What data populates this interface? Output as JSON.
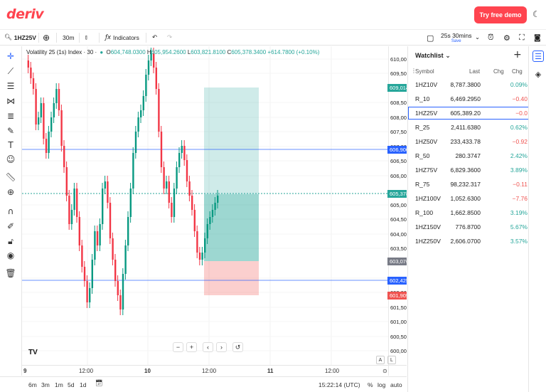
{
  "brand": {
    "logo": "deriv",
    "accent": "#ff444f"
  },
  "topbar": {
    "demo_label": "Try free demo",
    "theme_icon": "moon-icon"
  },
  "toolbar": {
    "symbol": "1HZ25V",
    "interval": "30m",
    "indicators_label": "Indicators",
    "range_label": "25s 30mins",
    "range_sub": "Save"
  },
  "legend": {
    "title": "Volatility 25 (1s) Index · 30 ·",
    "o_label": "O",
    "o": "604,748.0300",
    "h_label": "H",
    "h": "605,954.2600",
    "l_label": "L",
    "l": "603,821.8100",
    "c_label": "C",
    "c": "605,378.3400",
    "change": "+614.7800 (+0.10%)"
  },
  "price_scale": {
    "ticks": [
      "610,000.0000",
      "609,500.0000",
      "608,500.0000",
      "608,000.0000",
      "607,500.0000",
      "607,000.0000",
      "606,500.0000",
      "606,000.0000",
      "605,000.0000",
      "604,500.0000",
      "604,000.0000",
      "603,500.0000",
      "602,500.0000",
      "602,000.0000",
      "601,500.0000",
      "601,000.0000",
      "600,500.0000",
      "600,000.0000"
    ],
    "tags": [
      {
        "text": "609,014.6361",
        "color": "#26a69a"
      },
      {
        "text": "606,900.6756",
        "color": "#2962ff"
      },
      {
        "text": "605,378.3400",
        "color": "#26a69a"
      },
      {
        "text": "603,076.9394",
        "color": "#787b86"
      },
      {
        "text": "602,425.8761",
        "color": "#2962ff"
      },
      {
        "text": "601,909.0256",
        "color": "#ef5350"
      }
    ]
  },
  "time_axis": {
    "labels": [
      "9",
      "12:00",
      "10",
      "12:00",
      "11",
      "12:00"
    ]
  },
  "bottom": {
    "ranges": [
      "6m",
      "3m",
      "1m",
      "5d",
      "1d"
    ],
    "clock": "15:22:14 (UTC)",
    "pct": "%",
    "log": "log",
    "auto": "auto"
  },
  "axis_btns": {
    "a": "A",
    "l": "L"
  },
  "watchlist": {
    "title": "Watchlist",
    "headers": {
      "symbol": "Symbol",
      "last": "Last",
      "chg": "Chg",
      "chgp": "Chg"
    },
    "rows": [
      {
        "symbol": "1HZ10V",
        "last": "8,787.3800",
        "chg": "0.09%",
        "dir": "pos"
      },
      {
        "symbol": "R_10",
        "last": "6,469.2950",
        "chg": "−0.40",
        "dir": "neg"
      },
      {
        "symbol": "1HZ25V",
        "last": "605,389.20",
        "chg": "−0.0",
        "dir": "neg"
      },
      {
        "symbol": "R_25",
        "last": "2,411.6380",
        "chg": "0.62%",
        "dir": "pos"
      },
      {
        "symbol": "1HZ50V",
        "last": "233,433.78",
        "chg": "−0.92",
        "dir": "neg"
      },
      {
        "symbol": "R_50",
        "last": "280.3747",
        "chg": "2.42%",
        "dir": "pos"
      },
      {
        "symbol": "1HZ75V",
        "last": "6,829.3600",
        "chg": "3.89%",
        "dir": "pos"
      },
      {
        "symbol": "R_75",
        "last": "98,232.317",
        "chg": "−0.11",
        "dir": "neg"
      },
      {
        "symbol": "1HZ100V",
        "last": "1,052.6300",
        "chg": "−7.76",
        "dir": "neg"
      },
      {
        "symbol": "R_100",
        "last": "1,662.8500",
        "chg": "3.19%",
        "dir": "pos"
      },
      {
        "symbol": "1HZ150V",
        "last": "776.8700",
        "chg": "5.67%",
        "dir": "pos"
      },
      {
        "symbol": "1HZ250V",
        "last": "2,606.0700",
        "chg": "3.57%",
        "dir": "pos"
      }
    ]
  }
}
